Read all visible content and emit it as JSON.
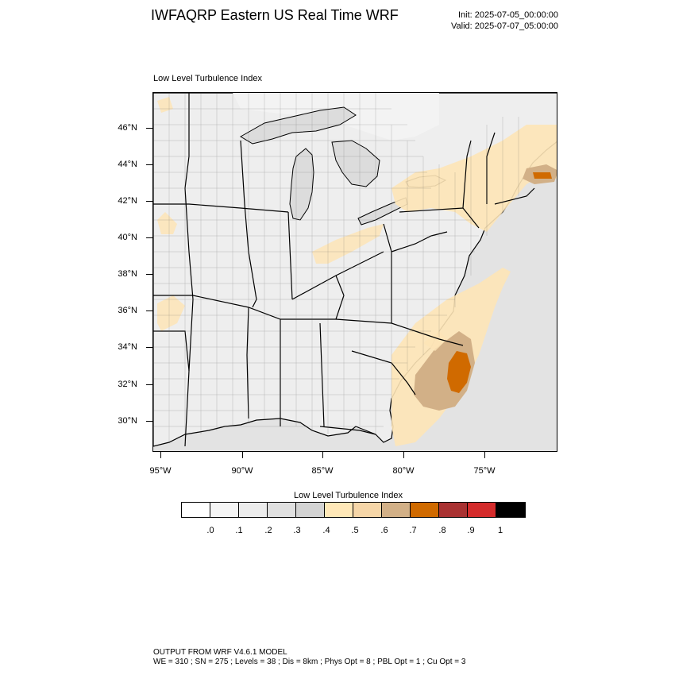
{
  "header": {
    "title": "IWFAQRP Eastern US Real Time WRF",
    "init": "Init: 2025-07-05_00:00:00",
    "valid": "Valid: 2025-07-07_05:00:00"
  },
  "panel": {
    "title": "Low Level Turbulence Index"
  },
  "map": {
    "lat_labels": [
      "46°N",
      "44°N",
      "42°N",
      "40°N",
      "38°N",
      "36°N",
      "34°N",
      "32°N",
      "30°N"
    ],
    "lon_labels": [
      "95°W",
      "90°W",
      "85°W",
      "80°W",
      "75°W"
    ],
    "colors": {
      "ocean": "#e3e3e3",
      "land": "#eeeeee",
      "lakes": "#dcdcdc",
      "low": "#fde4b6",
      "mid": "#d2b087",
      "high": "#d06a00",
      "boundary": "#000000"
    }
  },
  "colorbar": {
    "title": "Low Level Turbulence Index",
    "colors": [
      "#ffffff",
      "#f5f5f5",
      "#ececec",
      "#e0e0e0",
      "#d3d3d3",
      "#ffe8b8",
      "#f6d6a8",
      "#d2b087",
      "#d06a00",
      "#a93232",
      "#d42b2b",
      "#000000"
    ],
    "labels": [
      ".0",
      ".1",
      ".2",
      ".3",
      ".4",
      ".5",
      ".6",
      ".7",
      ".8",
      ".9",
      "1"
    ]
  },
  "footer": {
    "line1": "OUTPUT FROM WRF V4.6.1 MODEL",
    "line2": "WE = 310 ; SN = 275 ; Levels = 38 ; Dis = 8km ; Phys Opt = 8 ; PBL Opt = 1 ; Cu Opt = 3"
  }
}
